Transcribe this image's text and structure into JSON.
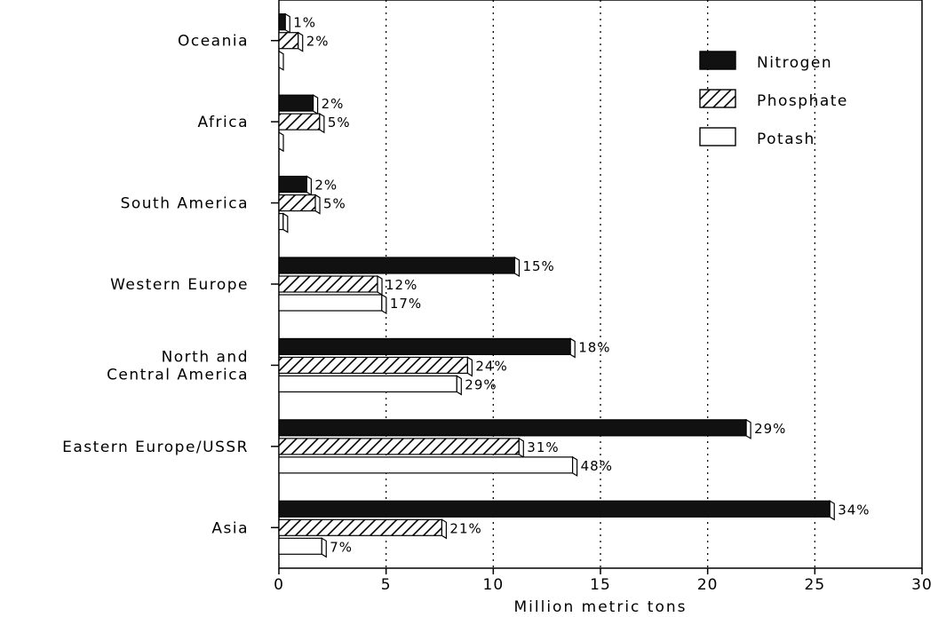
{
  "chart_data": {
    "type": "bar",
    "orientation": "horizontal",
    "categories": [
      "Oceania",
      "Africa",
      "South America",
      "Western Europe",
      "North and Central America",
      "Eastern Europe/USSR",
      "Asia"
    ],
    "category_lines": [
      [
        "Oceania"
      ],
      [
        "Africa"
      ],
      [
        "South America"
      ],
      [
        "Western Europe"
      ],
      [
        "North and",
        "Central America"
      ],
      [
        "Eastern Europe/USSR"
      ],
      [
        "Asia"
      ]
    ],
    "series": [
      {
        "name": "Nitrogen",
        "values": [
          0.3,
          1.6,
          1.3,
          11.0,
          13.6,
          21.8,
          25.7
        ],
        "labels": [
          "1%",
          "2%",
          "2%",
          "15%",
          "18%",
          "29%",
          "34%"
        ],
        "fill": "#111111"
      },
      {
        "name": "Phosphate",
        "values": [
          0.9,
          1.9,
          1.7,
          4.6,
          8.8,
          11.2,
          7.6
        ],
        "labels": [
          "2%",
          "5%",
          "5%",
          "12%",
          "24%",
          "31%",
          "21%"
        ],
        "fill": "hatch"
      },
      {
        "name": "Potash",
        "values": [
          0.0,
          0.0,
          0.2,
          4.8,
          8.3,
          13.7,
          2.0
        ],
        "labels": [
          "",
          "",
          "",
          "17%",
          "29%",
          "48%",
          "7%"
        ],
        "fill": "#ffffff"
      }
    ],
    "xlabel": "Million metric tons",
    "ylabel": "",
    "xlim": [
      0,
      30
    ],
    "xticks": [
      0,
      5,
      10,
      15,
      20,
      25,
      30
    ],
    "grid": "vertical-dotted",
    "legend": "top-right"
  }
}
